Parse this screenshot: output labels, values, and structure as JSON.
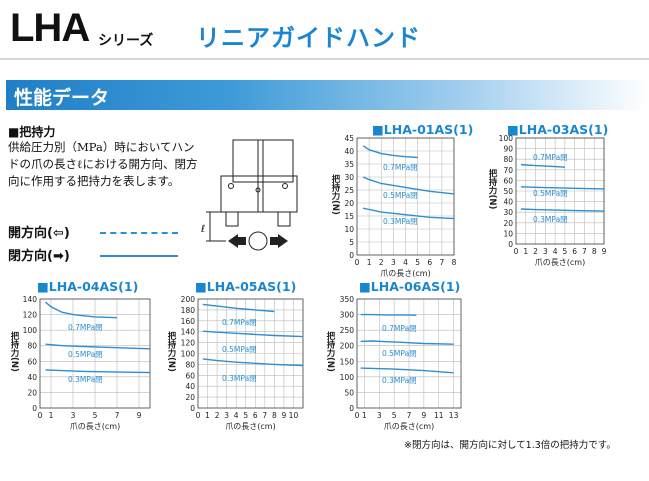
{
  "header": {
    "series_main": "LHA",
    "series_sub": "シリーズ",
    "title": "リニアガイドハンド"
  },
  "section": {
    "title": "性能データ"
  },
  "description": {
    "heading": "■把持力",
    "body": "供給圧力別（MPa）時においてハンドの爪の長さℓにおける開方向、閉方向に作用する把持力を表します。",
    "legend_open": "開方向(⇦)",
    "legend_close": "閉方向(➡)"
  },
  "diagram": {
    "length_label": "ℓ"
  },
  "colors": {
    "accent": "#1a86d0",
    "curve": "#2d8fd0",
    "grid": "#bbbbbb"
  },
  "footnote": "※閉方向は、開方向に対して1.3倍の把持力です。",
  "chart_data": [
    {
      "type": "line",
      "title": "■LHA-01AS(1)",
      "xlabel": "爪の長さ(cm)",
      "ylabel": "把持力(N)",
      "xlim": [
        0,
        8
      ],
      "ylim": [
        0,
        45
      ],
      "xticks": [
        0,
        1,
        2,
        3,
        4,
        5,
        6,
        7,
        8
      ],
      "yticks": [
        0,
        5,
        10,
        15,
        20,
        25,
        30,
        35,
        40,
        45
      ],
      "series": [
        {
          "name": "0.7MPa閉",
          "x": [
            0.5,
            1,
            2,
            3,
            4,
            5
          ],
          "y": [
            42,
            40.5,
            39,
            38.3,
            37.8,
            37.5
          ]
        },
        {
          "name": "0.5MPa閉",
          "x": [
            0.5,
            1,
            2,
            4,
            6,
            8
          ],
          "y": [
            30,
            29,
            27.5,
            26,
            24.5,
            23.5
          ]
        },
        {
          "name": "0.3MPa閉",
          "x": [
            0.5,
            1,
            2,
            4,
            6,
            8
          ],
          "y": [
            18,
            17.5,
            16.5,
            15.5,
            14.5,
            14
          ]
        }
      ]
    },
    {
      "type": "line",
      "title": "■LHA-03AS(1)",
      "xlabel": "爪の長さ(cm)",
      "ylabel": "把持力(N)",
      "xlim": [
        0,
        9
      ],
      "ylim": [
        0,
        100
      ],
      "xticks": [
        0,
        1,
        2,
        3,
        4,
        5,
        6,
        7,
        8,
        9
      ],
      "yticks": [
        0,
        10,
        20,
        30,
        40,
        50,
        60,
        70,
        80,
        90,
        100
      ],
      "series": [
        {
          "name": "0.7MPa閉",
          "x": [
            0.5,
            1,
            2,
            3,
            4,
            5
          ],
          "y": [
            75,
            74.5,
            74,
            73.5,
            73,
            72.5
          ]
        },
        {
          "name": "0.5MPa閉",
          "x": [
            0.5,
            2,
            4,
            6,
            9
          ],
          "y": [
            54,
            53.5,
            53,
            52.5,
            52
          ]
        },
        {
          "name": "0.3MPa閉",
          "x": [
            0.5,
            2,
            4,
            6,
            9
          ],
          "y": [
            33,
            32.5,
            32,
            31.5,
            31
          ]
        }
      ]
    },
    {
      "type": "line",
      "title": "■LHA-04AS(1)",
      "xlabel": "爪の長さ(cm)",
      "ylabel": "把持力(N)",
      "xlim": [
        0,
        10
      ],
      "ylim": [
        0,
        140
      ],
      "xticks": [
        0,
        1,
        3,
        5,
        7,
        9
      ],
      "yticks": [
        0,
        20,
        40,
        60,
        80,
        100,
        120,
        140
      ],
      "series": [
        {
          "name": "0.7MPa閉",
          "x": [
            0.5,
            1,
            2,
            3,
            5,
            7
          ],
          "y": [
            136,
            130,
            123,
            120,
            117,
            116
          ]
        },
        {
          "name": "0.5MPa閉",
          "x": [
            0.5,
            2,
            4,
            6,
            8,
            10
          ],
          "y": [
            82,
            80,
            79,
            78,
            77,
            76
          ]
        },
        {
          "name": "0.3MPa閉",
          "x": [
            0.5,
            2,
            4,
            6,
            8,
            10
          ],
          "y": [
            49,
            48,
            47,
            46.5,
            46,
            45.5
          ]
        }
      ]
    },
    {
      "type": "line",
      "title": "■LHA-05AS(1)",
      "xlabel": "爪の長さ(cm)",
      "ylabel": "把持力(N)",
      "xlim": [
        0,
        11
      ],
      "ylim": [
        0,
        200
      ],
      "xticks": [
        0,
        1,
        2,
        3,
        4,
        5,
        6,
        7,
        8,
        9,
        10,
        11
      ],
      "xticklabels": [
        "0",
        "1",
        "2",
        "3",
        "4",
        "5",
        "6",
        "7",
        "8",
        "9",
        "10",
        ""
      ],
      "yticks": [
        0,
        20,
        40,
        60,
        80,
        100,
        120,
        140,
        160,
        180,
        200
      ],
      "series": [
        {
          "name": "0.7MPa閉",
          "x": [
            0.5,
            2,
            4,
            6,
            8
          ],
          "y": [
            190,
            187,
            183,
            180,
            177
          ]
        },
        {
          "name": "0.5MPa閉",
          "x": [
            0.5,
            2,
            4,
            6,
            8,
            11
          ],
          "y": [
            141,
            139,
            137,
            135,
            133,
            131
          ]
        },
        {
          "name": "0.3MPa閉",
          "x": [
            0.5,
            2,
            4,
            6,
            8,
            11
          ],
          "y": [
            90,
            87,
            84,
            82,
            80,
            78
          ]
        }
      ]
    },
    {
      "type": "line",
      "title": "■LHA-06AS(1)",
      "xlabel": "爪の長さ(cm)",
      "ylabel": "把持力(N)",
      "xlim": [
        0,
        14
      ],
      "ylim": [
        0,
        350
      ],
      "xticks": [
        0,
        1,
        3,
        5,
        7,
        9,
        11,
        13
      ],
      "yticks": [
        0,
        50,
        100,
        150,
        200,
        250,
        300,
        350
      ],
      "series": [
        {
          "name": "0.7MPa閉",
          "x": [
            0.5,
            2,
            4,
            6,
            8
          ],
          "y": [
            300,
            300,
            299,
            299,
            298
          ]
        },
        {
          "name": "0.5MPa閉",
          "x": [
            0.5,
            2,
            4,
            6,
            9,
            13
          ],
          "y": [
            214,
            215,
            213,
            211,
            207,
            205
          ]
        },
        {
          "name": "0.3MPa閉",
          "x": [
            0.5,
            2,
            4,
            6,
            9,
            13
          ],
          "y": [
            128,
            127,
            126,
            124,
            120,
            113
          ]
        }
      ]
    }
  ]
}
